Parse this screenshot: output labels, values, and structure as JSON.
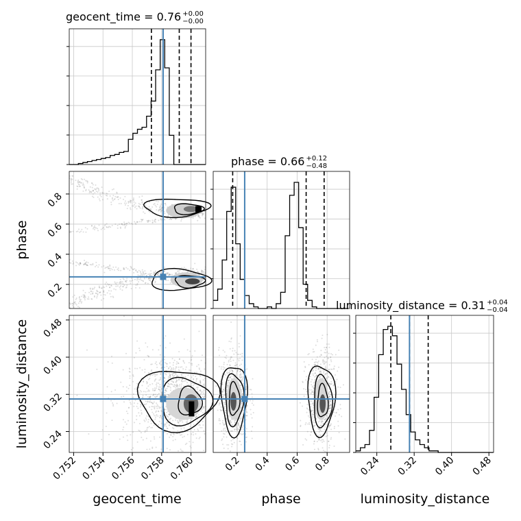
{
  "chart_data": {
    "type": "corner",
    "parameters": [
      "geocent_time",
      "phase",
      "luminosity_distance"
    ],
    "truths": {
      "geocent_time": 0.7581,
      "phase": 0.25,
      "luminosity_distance": 0.31
    },
    "truth_color": "#4682b4",
    "ranges": {
      "geocent_time": [
        0.7517,
        0.761
      ],
      "phase": [
        0.04,
        0.95
      ],
      "luminosity_distance": [
        0.195,
        0.49
      ]
    },
    "ticks": {
      "geocent_time": [
        0.752,
        0.754,
        0.756,
        0.758,
        0.76
      ],
      "phase": [
        0.2,
        0.4,
        0.6,
        0.8
      ],
      "luminosity_distance": [
        0.24,
        0.32,
        0.4,
        0.48
      ]
    },
    "tick_labels": {
      "geocent_time": [
        "0.752",
        "0.754",
        "0.756",
        "0.758",
        "0.760"
      ],
      "phase": [
        "0.2",
        "0.4",
        "0.6",
        "0.8"
      ],
      "luminosity_distance": [
        "0.24",
        "0.32",
        "0.40",
        "0.48"
      ]
    },
    "titles": {
      "geocent_time": {
        "text": "geocent_time = 0.76",
        "plus": "+0.00",
        "minus": "−0.00"
      },
      "phase": {
        "text": "phase = 0.66",
        "plus": "+0.12",
        "minus": "−0.48"
      },
      "luminosity_distance": {
        "text": "luminosity_distance = 0.31",
        "plus": "+0.04",
        "minus": "−0.04"
      }
    },
    "quantiles": {
      "geocent_time": [
        0.7573,
        0.7592,
        0.76
      ],
      "phase": [
        0.17,
        0.66,
        0.78
      ],
      "luminosity_distance": [
        0.27,
        0.31,
        0.35
      ]
    },
    "histograms": {
      "geocent_time": {
        "edges_start": 0.7517,
        "bin_width": 0.00031,
        "counts": [
          0,
          0,
          1,
          2,
          3,
          4,
          5,
          6,
          7,
          9,
          10,
          12,
          13,
          25,
          31,
          35,
          37,
          48,
          63,
          94,
          124,
          96,
          29,
          0,
          0,
          0,
          0,
          0,
          0,
          0
        ]
      },
      "phase": {
        "edges_start": 0.04,
        "bin_width": 0.03,
        "counts": [
          5,
          12,
          30,
          60,
          75,
          40,
          18,
          8,
          3,
          1,
          0,
          0,
          1,
          0,
          3,
          10,
          45,
          70,
          78,
          50,
          15,
          5,
          1,
          0,
          0,
          0,
          0,
          0,
          0,
          0
        ]
      },
      "luminosity_distance": {
        "edges_start": 0.195,
        "bin_width": 0.0098,
        "counts": [
          1,
          3,
          5,
          14,
          35,
          62,
          78,
          80,
          74,
          56,
          40,
          24,
          13,
          8,
          5,
          3,
          1,
          1,
          0,
          0,
          0,
          0,
          0,
          0,
          0,
          0,
          0,
          0,
          0,
          0
        ]
      }
    }
  }
}
